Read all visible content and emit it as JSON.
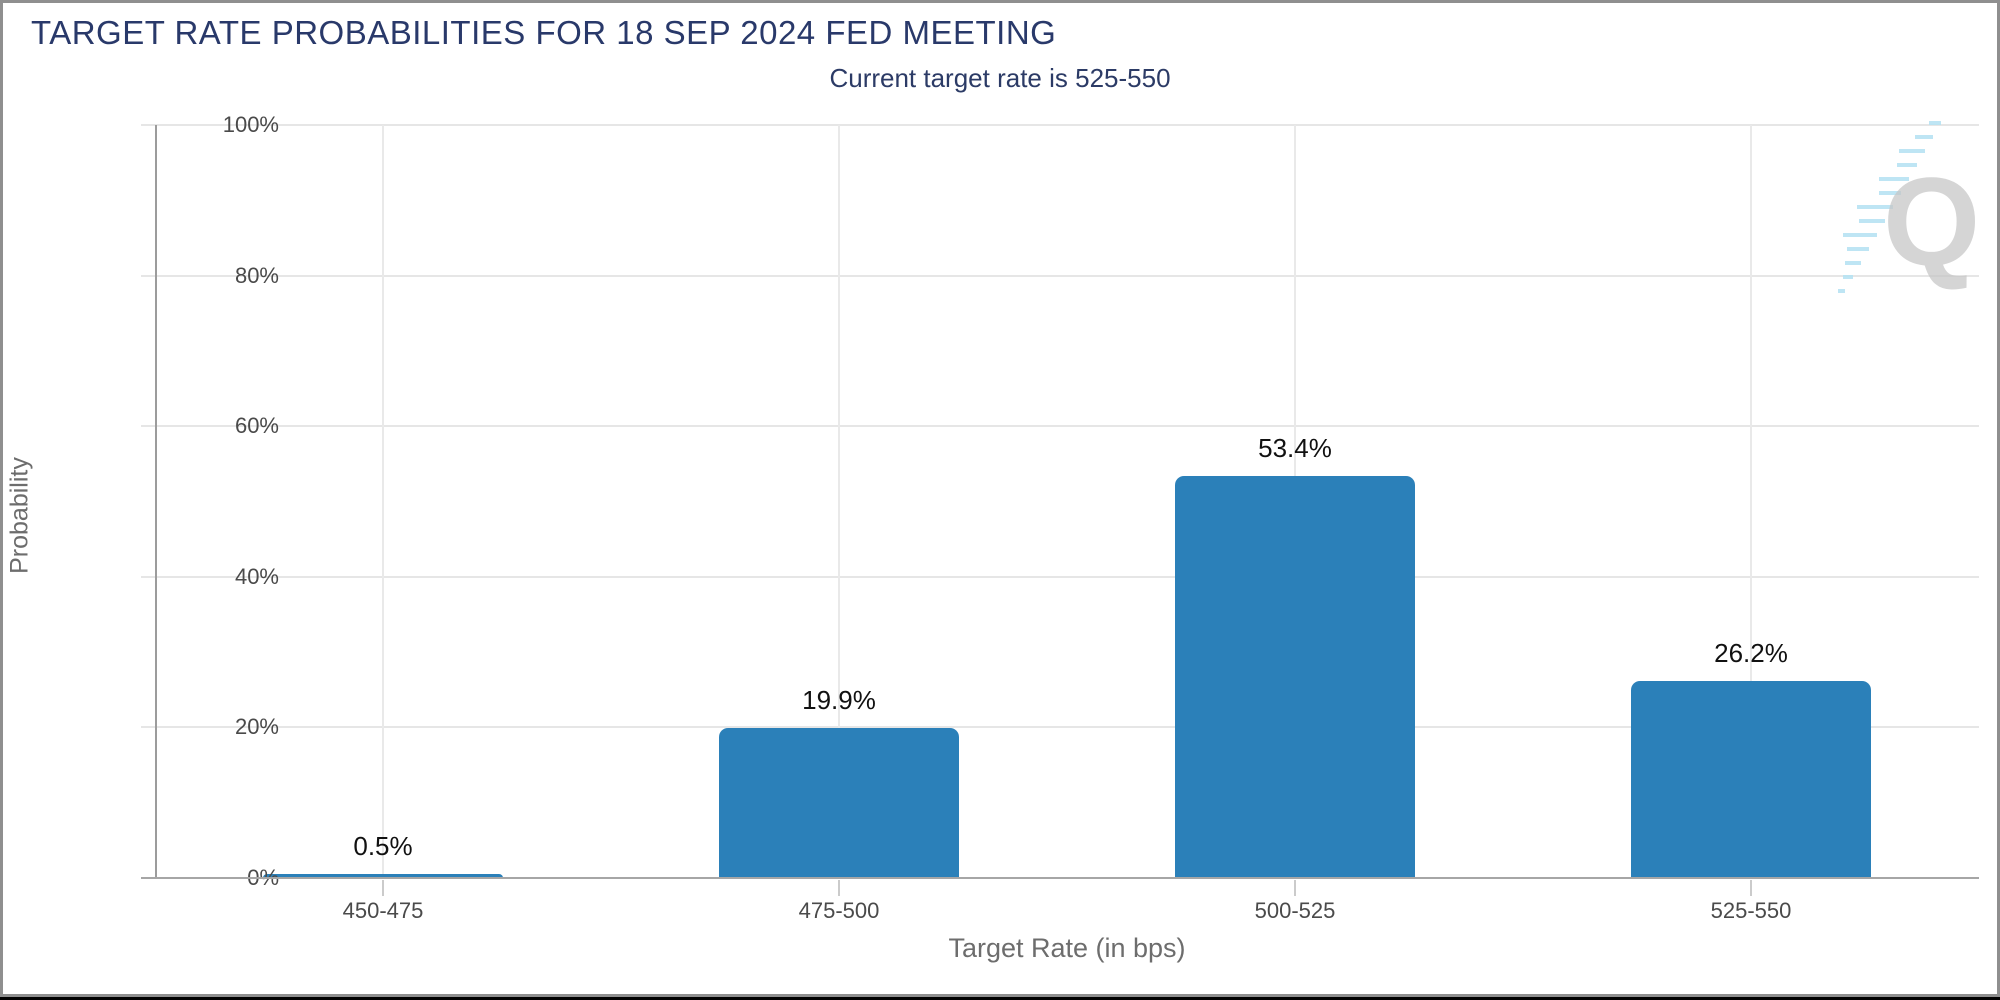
{
  "header": {
    "title": "TARGET RATE PROBABILITIES FOR 18 SEP 2024 FED MEETING",
    "subtitle": "Current target rate is 525-550"
  },
  "chart_data": {
    "type": "bar",
    "title": "TARGET RATE PROBABILITIES FOR 18 SEP 2024 FED MEETING",
    "subtitle": "Current target rate is 525-550",
    "categories": [
      "450-475",
      "475-500",
      "500-525",
      "525-550"
    ],
    "values": [
      0.5,
      19.9,
      53.4,
      26.2
    ],
    "value_labels": [
      "0.5%",
      "19.9%",
      "53.4%",
      "26.2%"
    ],
    "xlabel": "Target Rate (in bps)",
    "ylabel": "Probability",
    "ylim": [
      0,
      100
    ],
    "ytick_step": 20,
    "ytick_labels": [
      "0%",
      "20%",
      "40%",
      "60%",
      "80%",
      "100%"
    ],
    "grid": true,
    "legend": "none",
    "bar_color": "#2b80b9"
  },
  "watermark": {
    "letter": "Q"
  },
  "colors": {
    "title": "#29396a",
    "subtitle": "#2c3b66",
    "bar": "#2b80b9",
    "tick_text": "#4a4a4a",
    "axis_title_text": "#6d6d6d",
    "value_label": "#111111",
    "gridline": "#e6e6e6",
    "axis_line": "#a0a0a0",
    "watermark_q": "#c7c7c7",
    "watermark_streak": "#b7e3f3"
  }
}
